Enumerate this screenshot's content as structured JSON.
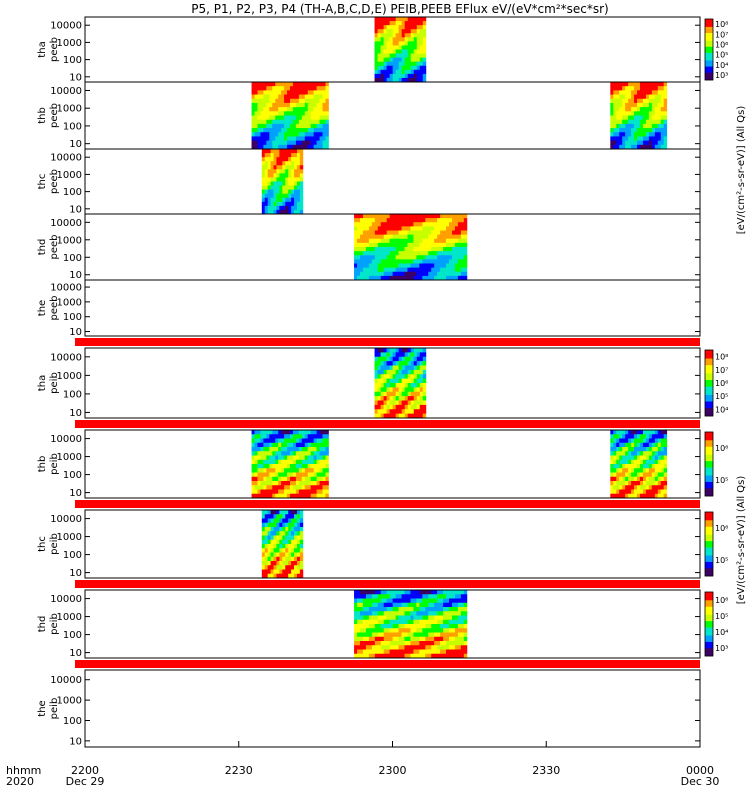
{
  "title": "P5, P1, P2, P3, P4 (TH-A,B,C,D,E) PEIB,PEEB EFlux eV/(eV*cm²*sec*sr)",
  "colorbar_units": {
    "electron": "[eV/(cm²-s-sr-eV)] (All Qs)",
    "ion": "[eV/(cm²-s-sr-eV)] (All Qs)"
  },
  "time_axis": {
    "row_label_1": "hhmm",
    "row_label_2": "2020",
    "ticks": [
      {
        "hhmm": "2200",
        "date": "Dec 29"
      },
      {
        "hhmm": "2230",
        "date": ""
      },
      {
        "hhmm": "2300",
        "date": ""
      },
      {
        "hhmm": "2330",
        "date": ""
      },
      {
        "hhmm": "0000",
        "date": "Dec 30"
      }
    ]
  },
  "chart_data": {
    "type": "heatmap",
    "x_unit": "minutes after 2020-12-29 22:00 UT",
    "xlim": [
      0,
      120
    ],
    "ylim": [
      5,
      30000
    ],
    "y_scale": "log",
    "y_ticks": [
      "10",
      "100",
      "1000",
      "10000"
    ],
    "panels": [
      {
        "name": "tha peeb",
        "line1": "tha",
        "line2": "peeb",
        "species": "electron",
        "intervals": [
          [
            56.5,
            66.5
          ]
        ],
        "colorbar": true,
        "colorbar_ticks": [
          "10³",
          "10⁴",
          "10⁵",
          "10⁶",
          "10⁷",
          "10⁸"
        ]
      },
      {
        "name": "thb peeb",
        "line1": "thb",
        "line2": "peeb",
        "species": "electron",
        "intervals": [
          [
            32.5,
            47.5
          ],
          [
            102.5,
            113.5
          ]
        ],
        "colorbar": false
      },
      {
        "name": "thc peeb",
        "line1": "thc",
        "line2": "peeb",
        "species": "electron",
        "intervals": [
          [
            34.5,
            42.5
          ]
        ],
        "colorbar": false
      },
      {
        "name": "thd peeb",
        "line1": "thd",
        "line2": "peeb",
        "species": "electron",
        "intervals": [
          [
            52.5,
            74.5
          ]
        ],
        "colorbar": false
      },
      {
        "name": "the peeb",
        "line1": "the",
        "line2": "peeb",
        "species": "electron",
        "intervals": [],
        "colorbar": false
      },
      {
        "name": "tha peib",
        "line1": "tha",
        "line2": "peib",
        "species": "ion",
        "intervals": [
          [
            56.5,
            66.5
          ]
        ],
        "colorbar": true,
        "colorbar_ticks": [
          "10⁴",
          "10⁵",
          "10⁶",
          "10⁷",
          "10⁸"
        ]
      },
      {
        "name": "thb peib",
        "line1": "thb",
        "line2": "peib",
        "species": "ion",
        "intervals": [
          [
            32.5,
            47.5
          ],
          [
            102.5,
            113.5
          ]
        ],
        "colorbar": true,
        "colorbar_ticks": [
          "10⁵",
          "10⁶"
        ]
      },
      {
        "name": "thc peib",
        "line1": "thc",
        "line2": "peib",
        "species": "ion",
        "intervals": [
          [
            34.5,
            42.5
          ]
        ],
        "colorbar": true,
        "colorbar_ticks": [
          "10⁵",
          "10⁶"
        ]
      },
      {
        "name": "thd peib",
        "line1": "thd",
        "line2": "peib",
        "species": "ion",
        "intervals": [
          [
            52.5,
            74.5
          ]
        ],
        "colorbar": true,
        "colorbar_ticks": [
          "10³",
          "10⁴",
          "10⁵",
          "10⁶"
        ]
      },
      {
        "name": "the peib",
        "line1": "the",
        "line2": "peib",
        "species": "ion",
        "intervals": [],
        "colorbar": false
      }
    ],
    "separator_strips": {
      "after_panels": [
        4,
        5,
        6,
        7,
        8
      ],
      "color": "#ff0000"
    },
    "colorscale": [
      "#3c0064",
      "#0000ff",
      "#00a0ff",
      "#00e6c8",
      "#00ff00",
      "#c8ff00",
      "#ffff00",
      "#ffa000",
      "#ff0000"
    ]
  }
}
